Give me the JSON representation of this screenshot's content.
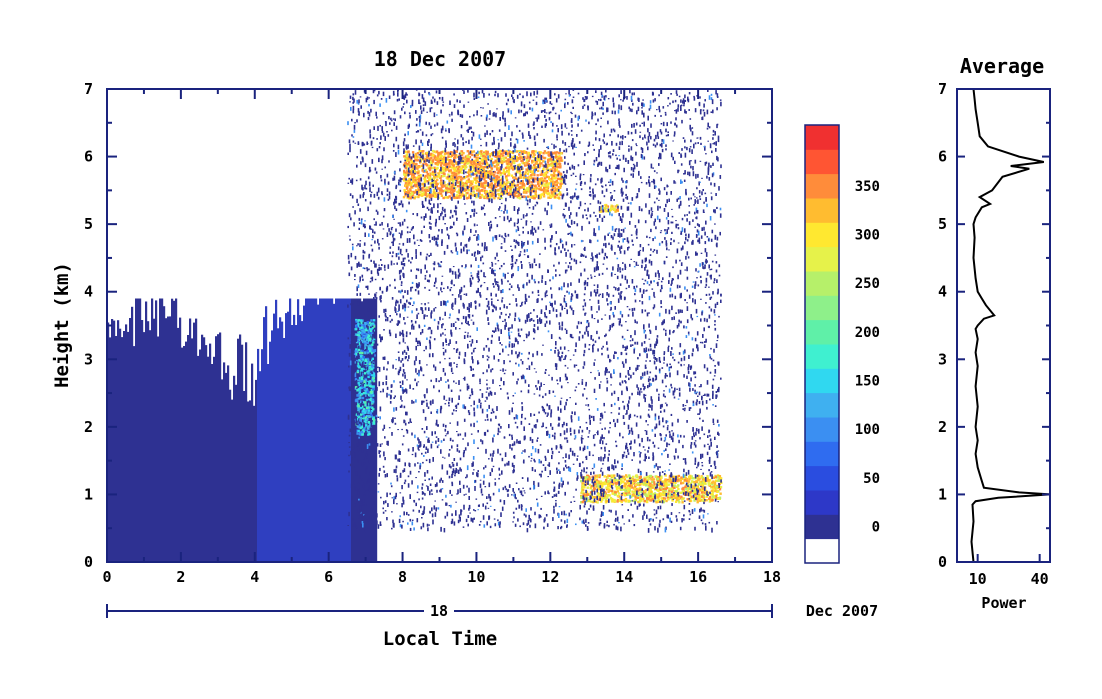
{
  "chart_data": [
    {
      "type": "heatmap",
      "title": "18 Dec 2007",
      "xlabel": "Local Time",
      "ylabel": "Height (km)",
      "xlim": [
        0,
        18
      ],
      "ylim": [
        0,
        7
      ],
      "x_ticks": [
        "0",
        "2",
        "4",
        "6",
        "8",
        "10",
        "12",
        "14",
        "16",
        "18"
      ],
      "y_ticks": [
        "0",
        "1",
        "2",
        "3",
        "4",
        "5",
        "6",
        "7"
      ],
      "date_bar": {
        "day_label": "18",
        "month_year_label": "Dec 2007"
      },
      "features": [
        {
          "name": "dense_low_cloud",
          "x": [
            0,
            7.3
          ],
          "y": [
            0,
            3.9
          ],
          "level": 20
        },
        {
          "name": "enhanced_column",
          "x": [
            6.7,
            7.2
          ],
          "y": [
            1.9,
            3.6
          ],
          "level": 150
        },
        {
          "name": "upper_layer",
          "x": [
            8,
            12.3
          ],
          "y": [
            5.4,
            6.1
          ],
          "level": 350
        },
        {
          "name": "upper_patch",
          "x": [
            13.3,
            13.8
          ],
          "y": [
            5.2,
            5.3
          ],
          "level": 330
        },
        {
          "name": "lower_layer",
          "x": [
            12.8,
            16.6
          ],
          "y": [
            0.9,
            1.3
          ],
          "level": 320
        },
        {
          "name": "noise_region",
          "x": [
            6.5,
            16.6
          ],
          "y": [
            0.5,
            7.0
          ],
          "level": 20
        }
      ],
      "colorbar": {
        "ticks": [
          "0",
          "50",
          "100",
          "150",
          "200",
          "250",
          "300",
          "350"
        ],
        "boundaries": [
          0,
          25,
          50,
          75,
          100,
          125,
          150,
          175,
          200,
          225,
          250,
          275,
          300,
          325,
          350,
          375
        ],
        "colors": [
          "#2e3192",
          "#2d38c8",
          "#2a4de0",
          "#2f6cf0",
          "#3b8ff2",
          "#3fb0f0",
          "#30d8f0",
          "#3ff0d0",
          "#5ff0a8",
          "#8ef08a",
          "#b6f06a",
          "#e6f24a",
          "#ffe830",
          "#ffbc30",
          "#ff8c3a",
          "#ff5533",
          "#f03030"
        ]
      }
    },
    {
      "type": "line",
      "title": "Average",
      "xlabel": "Power",
      "ylabel": "",
      "xlim": [
        0,
        45
      ],
      "ylim": [
        0,
        7
      ],
      "x_ticks": [
        "10",
        "40"
      ],
      "y_ticks": [
        "0",
        "1",
        "2",
        "3",
        "4",
        "5",
        "6",
        "7"
      ],
      "series": [
        {
          "x": [
            8,
            7,
            8,
            7.5,
            9,
            20,
            45,
            30,
            13,
            12,
            10,
            9,
            10,
            9,
            10,
            9,
            10,
            9,
            10,
            9,
            10,
            13,
            18,
            14,
            12,
            10,
            9,
            8,
            8.5,
            8,
            9,
            12,
            16,
            11,
            17,
            22,
            35,
            26,
            42,
            30,
            15,
            11,
            10,
            9,
            8.5,
            8
          ],
          "y": [
            0,
            0.3,
            0.6,
            0.85,
            0.9,
            0.95,
            1.0,
            1.03,
            1.1,
            1.2,
            1.4,
            1.6,
            1.8,
            2.0,
            2.3,
            2.6,
            2.9,
            3.1,
            3.3,
            3.45,
            3.5,
            3.6,
            3.65,
            3.8,
            3.9,
            4.0,
            4.2,
            4.5,
            4.8,
            5.0,
            5.1,
            5.25,
            5.3,
            5.4,
            5.5,
            5.7,
            5.82,
            5.86,
            5.92,
            6.0,
            6.15,
            6.3,
            6.5,
            6.7,
            6.85,
            7.0
          ]
        }
      ]
    }
  ]
}
